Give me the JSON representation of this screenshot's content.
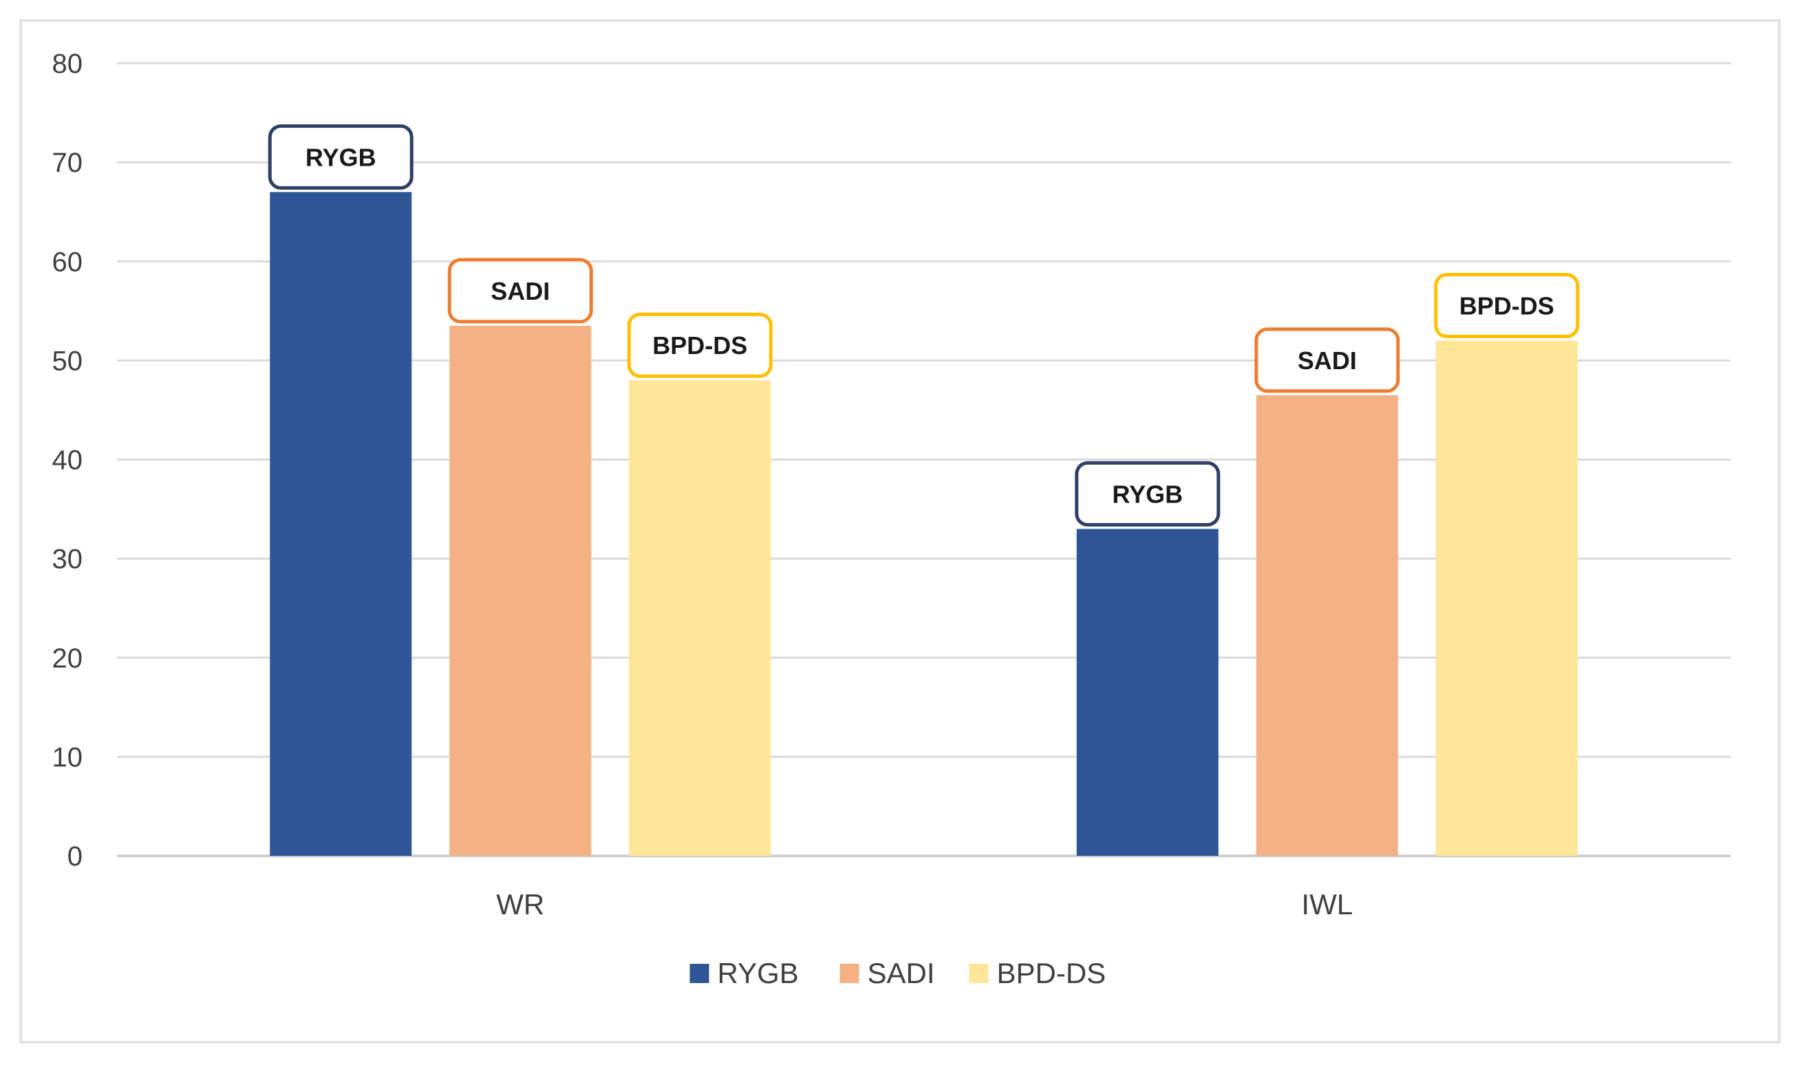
{
  "chart_data": {
    "type": "bar",
    "title": "",
    "xlabel": "",
    "ylabel": "",
    "categories": [
      "WR",
      "IWL"
    ],
    "series": [
      {
        "name": "RYGB",
        "values": [
          67,
          33
        ],
        "color": "#2f5597",
        "label_border": "#2f3f66"
      },
      {
        "name": "SADI",
        "values": [
          53.5,
          46.5
        ],
        "color": "#f4b183",
        "label_border": "#ed7d31"
      },
      {
        "name": "BPD-DS",
        "values": [
          48,
          52
        ],
        "color": "#ffe699",
        "label_border": "#ffc000"
      }
    ],
    "ylim": [
      0,
      80
    ],
    "yticks": [
      0,
      10,
      20,
      30,
      40,
      50,
      60,
      70,
      80
    ],
    "grid": true,
    "legend": "bottom-center"
  }
}
